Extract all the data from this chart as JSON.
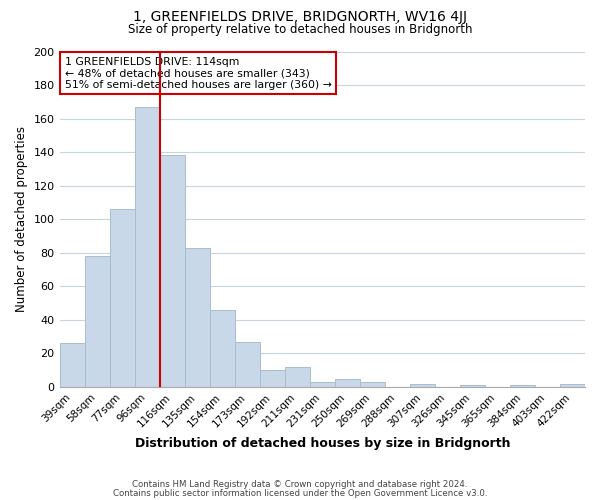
{
  "title": "1, GREENFIELDS DRIVE, BRIDGNORTH, WV16 4JJ",
  "subtitle": "Size of property relative to detached houses in Bridgnorth",
  "xlabel": "Distribution of detached houses by size in Bridgnorth",
  "ylabel": "Number of detached properties",
  "bar_color": "#c8d8e8",
  "bar_edge_color": "#a8bece",
  "categories": [
    "39sqm",
    "58sqm",
    "77sqm",
    "96sqm",
    "116sqm",
    "135sqm",
    "154sqm",
    "173sqm",
    "192sqm",
    "211sqm",
    "231sqm",
    "250sqm",
    "269sqm",
    "288sqm",
    "307sqm",
    "326sqm",
    "345sqm",
    "365sqm",
    "384sqm",
    "403sqm",
    "422sqm"
  ],
  "values": [
    26,
    78,
    106,
    167,
    138,
    83,
    46,
    27,
    10,
    12,
    3,
    5,
    3,
    0,
    2,
    0,
    1,
    0,
    1,
    0,
    2
  ],
  "ylim": [
    0,
    200
  ],
  "yticks": [
    0,
    20,
    40,
    60,
    80,
    100,
    120,
    140,
    160,
    180,
    200
  ],
  "vline_color": "#cc0000",
  "annotation_title": "1 GREENFIELDS DRIVE: 114sqm",
  "annotation_line1": "← 48% of detached houses are smaller (343)",
  "annotation_line2": "51% of semi-detached houses are larger (360) →",
  "annotation_box_color": "#ffffff",
  "annotation_box_edge": "#cc0000",
  "footer1": "Contains HM Land Registry data © Crown copyright and database right 2024.",
  "footer2": "Contains public sector information licensed under the Open Government Licence v3.0.",
  "background_color": "#ffffff",
  "grid_color": "#c8d4dc"
}
